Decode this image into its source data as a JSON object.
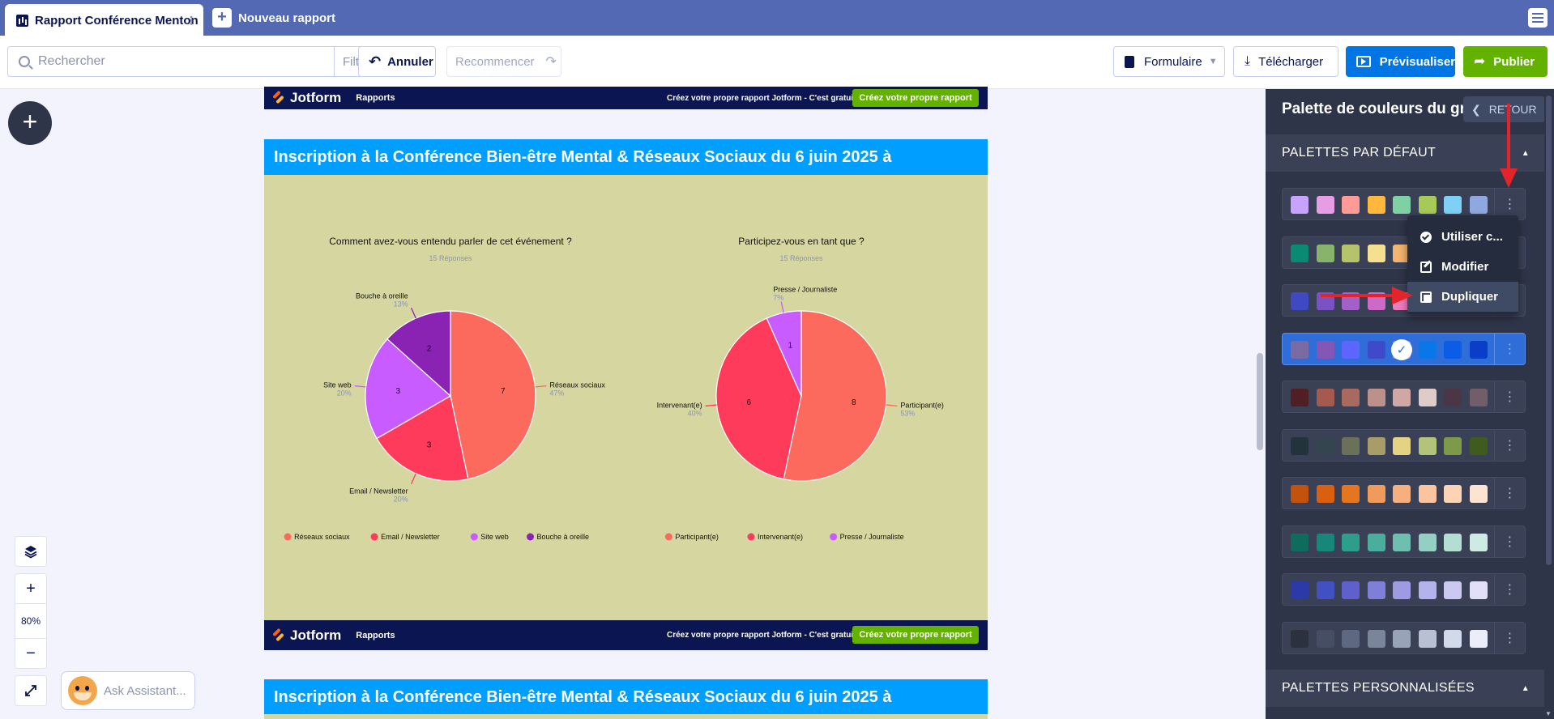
{
  "tabs": {
    "active": "Rapport Conférence Menton",
    "new": "Nouveau rapport"
  },
  "toolbar": {
    "search_placeholder": "Rechercher",
    "filter": "Filtre",
    "undo": "Annuler",
    "redo": "Recommencer",
    "form": "Formulaire",
    "download": "Télécharger",
    "preview": "Prévisualiser",
    "publish": "Publier"
  },
  "zoom": {
    "level": "80%"
  },
  "assistant": {
    "label": "Ask Assistant..."
  },
  "banner": {
    "logo": "Jotform",
    "subtitle": "Rapports",
    "promo": "Créez votre propre rapport Jotform - C'est gratuit",
    "cta": "Créez votre propre rapport"
  },
  "report": {
    "section_title": "Inscription à la Conférence Bien-être Mental & Réseaux Sociaux du 6 juin 2025 à",
    "section_title_2": "Inscription à la Conférence Bien-être Mental & Réseaux Sociaux du 6 juin 2025 à",
    "chart_bg": "#d6d7a0"
  },
  "chart_data": [
    {
      "type": "pie",
      "title": "Comment avez-vous entendu parler de cet événement ?",
      "subtitle": "15 Réponses",
      "legend_position": "bottom",
      "slices": [
        {
          "label": "Réseaux sociaux",
          "value": 7,
          "percent": "47%",
          "color": "#fc6a5e"
        },
        {
          "label": "Email / Newsletter",
          "value": 3,
          "percent": "20%",
          "color": "#ff3b5c"
        },
        {
          "label": "Site web",
          "value": 3,
          "percent": "20%",
          "color": "#c95cff"
        },
        {
          "label": "Bouche à oreille",
          "value": 2,
          "percent": "13%",
          "color": "#8a22b3"
        }
      ]
    },
    {
      "type": "pie",
      "title": "Participez-vous en tant que ?",
      "subtitle": "15 Réponses",
      "legend_position": "bottom",
      "slices": [
        {
          "label": "Participant(e)",
          "value": 8,
          "percent": "53%",
          "color": "#fc6a5e"
        },
        {
          "label": "Intervenant(e)",
          "value": 6,
          "percent": "40%",
          "color": "#ff3b5c"
        },
        {
          "label": "Presse / Journaliste",
          "value": 1,
          "percent": "7%",
          "color": "#c95cff"
        }
      ]
    }
  ],
  "panel": {
    "title": "Palette de couleurs du graphique",
    "back": "RETOUR",
    "default_header": "PALETTES PAR DÉFAUT",
    "custom_header": "PALETTES PERSONNALISÉES",
    "selected_index": 3,
    "palettes": [
      [
        "#c8a2ff",
        "#e59ee3",
        "#ff9b96",
        "#ffb83d",
        "#7fd1a4",
        "#a6c957",
        "#7fd0f5",
        "#8fa8e0"
      ],
      [
        "#0a8a73",
        "#87b36a",
        "#b5c46b",
        "#f5e08f",
        "#f2b46f",
        "#e87f6a",
        "#d25c6a",
        "#a8395a"
      ],
      [
        "#3f4ac2",
        "#7b52c4",
        "#a460c9",
        "#cc6ac8",
        "#ef7bbf",
        "#ff8fb0",
        "#ffa69f",
        "#ffc19a"
      ],
      [
        "#7b6ba3",
        "#8457b6",
        "#5c66ff",
        "#3f4acb",
        "#a78bfa",
        "#0a77e8",
        "#0b5ce6",
        "#0a3ec9"
      ],
      [
        "#4f1f24",
        "#a65a4f",
        "#a8695f",
        "#bb9189",
        "#d0a7a4",
        "#dfcbc7",
        "#4b3645",
        "#725d6a"
      ],
      [
        "#22333b",
        "#35454f",
        "#6b7058",
        "#a89d68",
        "#e3d382",
        "#b3c47a",
        "#7c9a4a",
        "#3f5b1e"
      ],
      [
        "#c2520c",
        "#d9600f",
        "#e57620",
        "#f09b5a",
        "#f5b07e",
        "#f9c49e",
        "#fcd4b5",
        "#fde4d0"
      ],
      [
        "#0f6b5c",
        "#16877a",
        "#2e9e8c",
        "#4aad9d",
        "#6fbfb0",
        "#94cfc3",
        "#b4ddd4",
        "#cfe9e3"
      ],
      [
        "#2b3aa8",
        "#4150c2",
        "#6060cc",
        "#7f7fd8",
        "#9e9be3",
        "#b5b3eb",
        "#cbc9f2",
        "#e1e0f8"
      ],
      [
        "#2b313f",
        "#454e62",
        "#5e6880",
        "#7a859c",
        "#98a3b8",
        "#b7c1d3",
        "#d1daea",
        "#e9eef8"
      ]
    ],
    "menu": {
      "use": "Utiliser c...",
      "edit": "Modifier",
      "duplicate": "Dupliquer"
    },
    "annotation_color": "#e3242b"
  }
}
